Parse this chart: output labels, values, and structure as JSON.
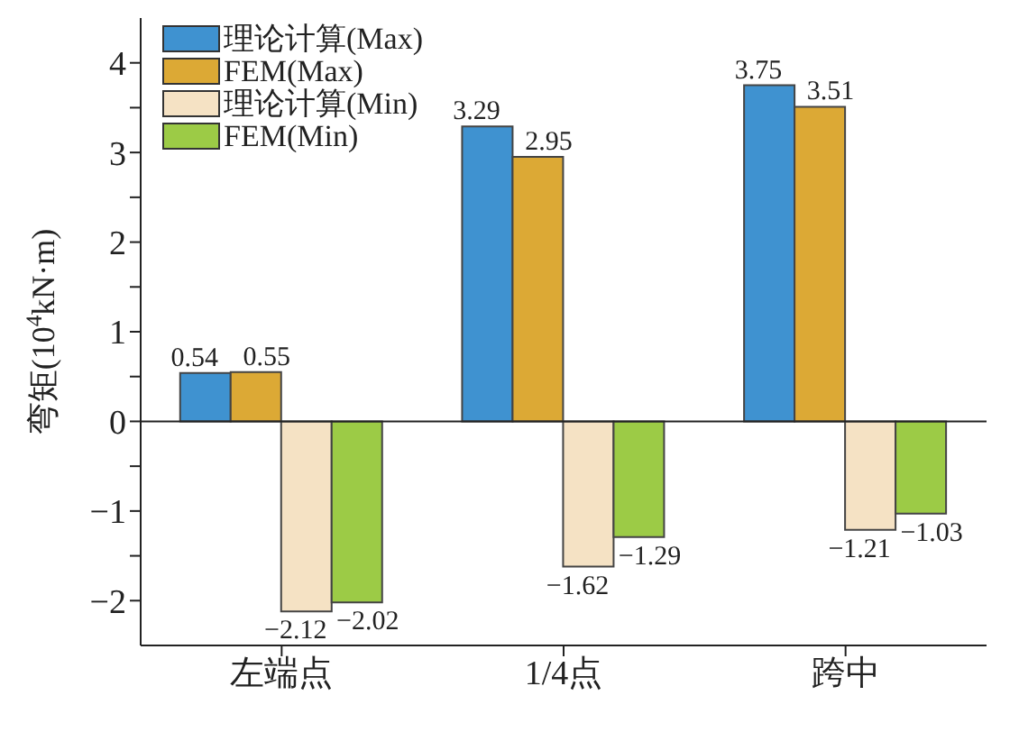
{
  "chart_data": {
    "type": "bar",
    "categories": [
      "左端点",
      "1/4点",
      "跨中"
    ],
    "series": [
      {
        "name": "理论计算(Max)",
        "color": "#3f92d0",
        "values": [
          0.54,
          3.29,
          3.75
        ]
      },
      {
        "name": "FEM(Max)",
        "color": "#dca935",
        "values": [
          0.55,
          2.95,
          3.51
        ]
      },
      {
        "name": "理论计算(Min)",
        "color": "#f5e2c4",
        "values": [
          -2.12,
          -1.62,
          -1.21
        ]
      },
      {
        "name": "FEM(Min)",
        "color": "#9ccb46",
        "values": [
          -2.02,
          -1.29,
          -1.03
        ]
      }
    ],
    "ylabel": "弯矩(10$^{4}$kN·m)",
    "ylim": [
      -2.5,
      4.5
    ],
    "yticks": [
      -2,
      {
        "value": -1.5,
        "label": null
      },
      -1,
      {
        "value": -0.5,
        "label": null
      },
      0,
      {
        "value": 0.5,
        "label": null
      },
      1,
      {
        "value": 1.5,
        "label": null
      },
      2,
      {
        "value": 2.5,
        "label": null
      },
      3,
      {
        "value": 3.5,
        "label": null
      },
      4
    ],
    "ref_lines": [
      {
        "axis": "y",
        "value": 0,
        "color": "#222222",
        "line_style": "solid"
      }
    ],
    "data_labels": true,
    "legend": "top left",
    "grid": false
  }
}
